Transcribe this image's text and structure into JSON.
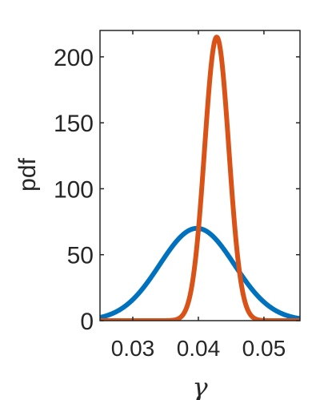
{
  "chart_data": {
    "type": "line",
    "xlabel": "γ",
    "ylabel": "pdf",
    "xlim": [
      0.025,
      0.0555
    ],
    "ylim": [
      0,
      220
    ],
    "xticks": [
      0.03,
      0.04,
      0.05
    ],
    "xtick_labels": [
      "0.03",
      "0.04",
      "0.05"
    ],
    "yticks": [
      0,
      50,
      100,
      150,
      200
    ],
    "ytick_labels": [
      "0",
      "50",
      "100",
      "150",
      "200"
    ],
    "grid": false,
    "series": [
      {
        "color": "#0072BD",
        "distribution": "normal",
        "mean": 0.0398,
        "std": 0.0057,
        "peak": 70
      },
      {
        "color": "#D95319",
        "distribution": "normal",
        "mean": 0.0428,
        "std": 0.00185,
        "peak": 215
      }
    ]
  }
}
